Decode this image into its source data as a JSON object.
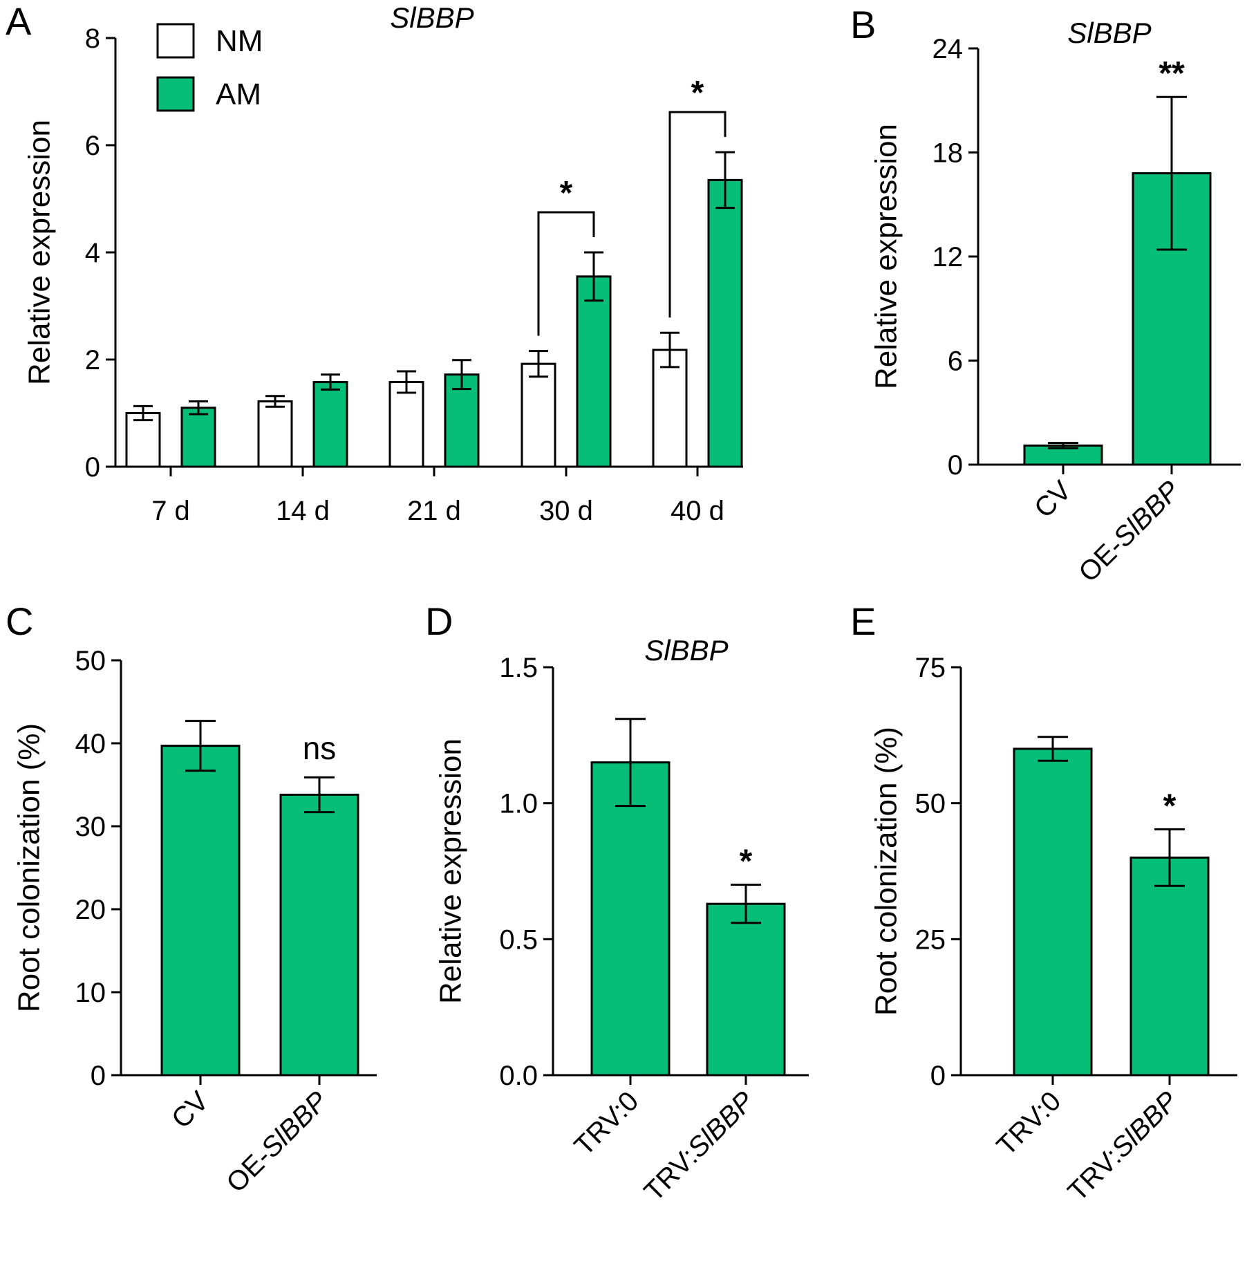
{
  "colors": {
    "am": "#07BE78",
    "nm": "#FFFFFF",
    "stroke": "#000000"
  },
  "chart_data": [
    {
      "panel": "A",
      "type": "bar",
      "title": "SlBBP",
      "ylabel": "Relative expression",
      "xlabel": "",
      "ylim": [
        0,
        8
      ],
      "yticks": [
        "0",
        "2",
        "4",
        "6",
        "8"
      ],
      "categories": [
        "7 d",
        "14 d",
        "21 d",
        "30 d",
        "40 d"
      ],
      "legend": {
        "position": "top-left"
      },
      "series": [
        {
          "name": "NM",
          "color": "#FFFFFF",
          "values": [
            1.0,
            1.22,
            1.58,
            1.92,
            2.18
          ],
          "errors": [
            0.13,
            0.1,
            0.2,
            0.24,
            0.32
          ]
        },
        {
          "name": "AM",
          "color": "#07BE78",
          "values": [
            1.1,
            1.58,
            1.72,
            3.55,
            5.35
          ],
          "errors": [
            0.12,
            0.14,
            0.27,
            0.45,
            0.52
          ]
        }
      ],
      "annotations": [
        {
          "category": "30 d",
          "label": "*"
        },
        {
          "category": "40 d",
          "label": "*"
        }
      ]
    },
    {
      "panel": "B",
      "type": "bar",
      "title": "SlBBP",
      "ylabel": "Relative expression",
      "xlabel": "",
      "ylim": [
        0,
        24
      ],
      "yticks": [
        "0",
        "6",
        "12",
        "18",
        "24"
      ],
      "categories": [
        "CV",
        "OE-SlBBP"
      ],
      "values": [
        1.1,
        16.8
      ],
      "errors": [
        0.15,
        4.4
      ],
      "annotations": [
        "",
        "**"
      ]
    },
    {
      "panel": "C",
      "type": "bar",
      "title": "",
      "ylabel": "Root colonization (%)",
      "xlabel": "",
      "ylim": [
        0,
        50
      ],
      "yticks": [
        "0",
        "10",
        "20",
        "30",
        "40",
        "50"
      ],
      "categories": [
        "CV",
        "OE-SlBBP"
      ],
      "values": [
        39.7,
        33.8
      ],
      "errors": [
        3.0,
        2.1
      ],
      "annotations": [
        "",
        "ns"
      ]
    },
    {
      "panel": "D",
      "type": "bar",
      "title": "SlBBP",
      "ylabel": "Relative expression",
      "xlabel": "",
      "ylim": [
        0,
        1.5
      ],
      "yticks": [
        "0.0",
        "0.5",
        "1.0",
        "1.5"
      ],
      "categories": [
        "TRV:0",
        "TRV:SlBBP"
      ],
      "values": [
        1.15,
        0.63
      ],
      "errors": [
        0.16,
        0.07
      ],
      "annotations": [
        "",
        "*"
      ]
    },
    {
      "panel": "E",
      "type": "bar",
      "title": "",
      "ylabel": "Root colonization (%)",
      "xlabel": "",
      "ylim": [
        0,
        75
      ],
      "yticks": [
        "0",
        "25",
        "50",
        "75"
      ],
      "categories": [
        "TRV:0",
        "TRV:SlBBP"
      ],
      "values": [
        60.0,
        40.0
      ],
      "errors": [
        2.2,
        5.2
      ],
      "annotations": [
        "",
        "*"
      ]
    }
  ]
}
